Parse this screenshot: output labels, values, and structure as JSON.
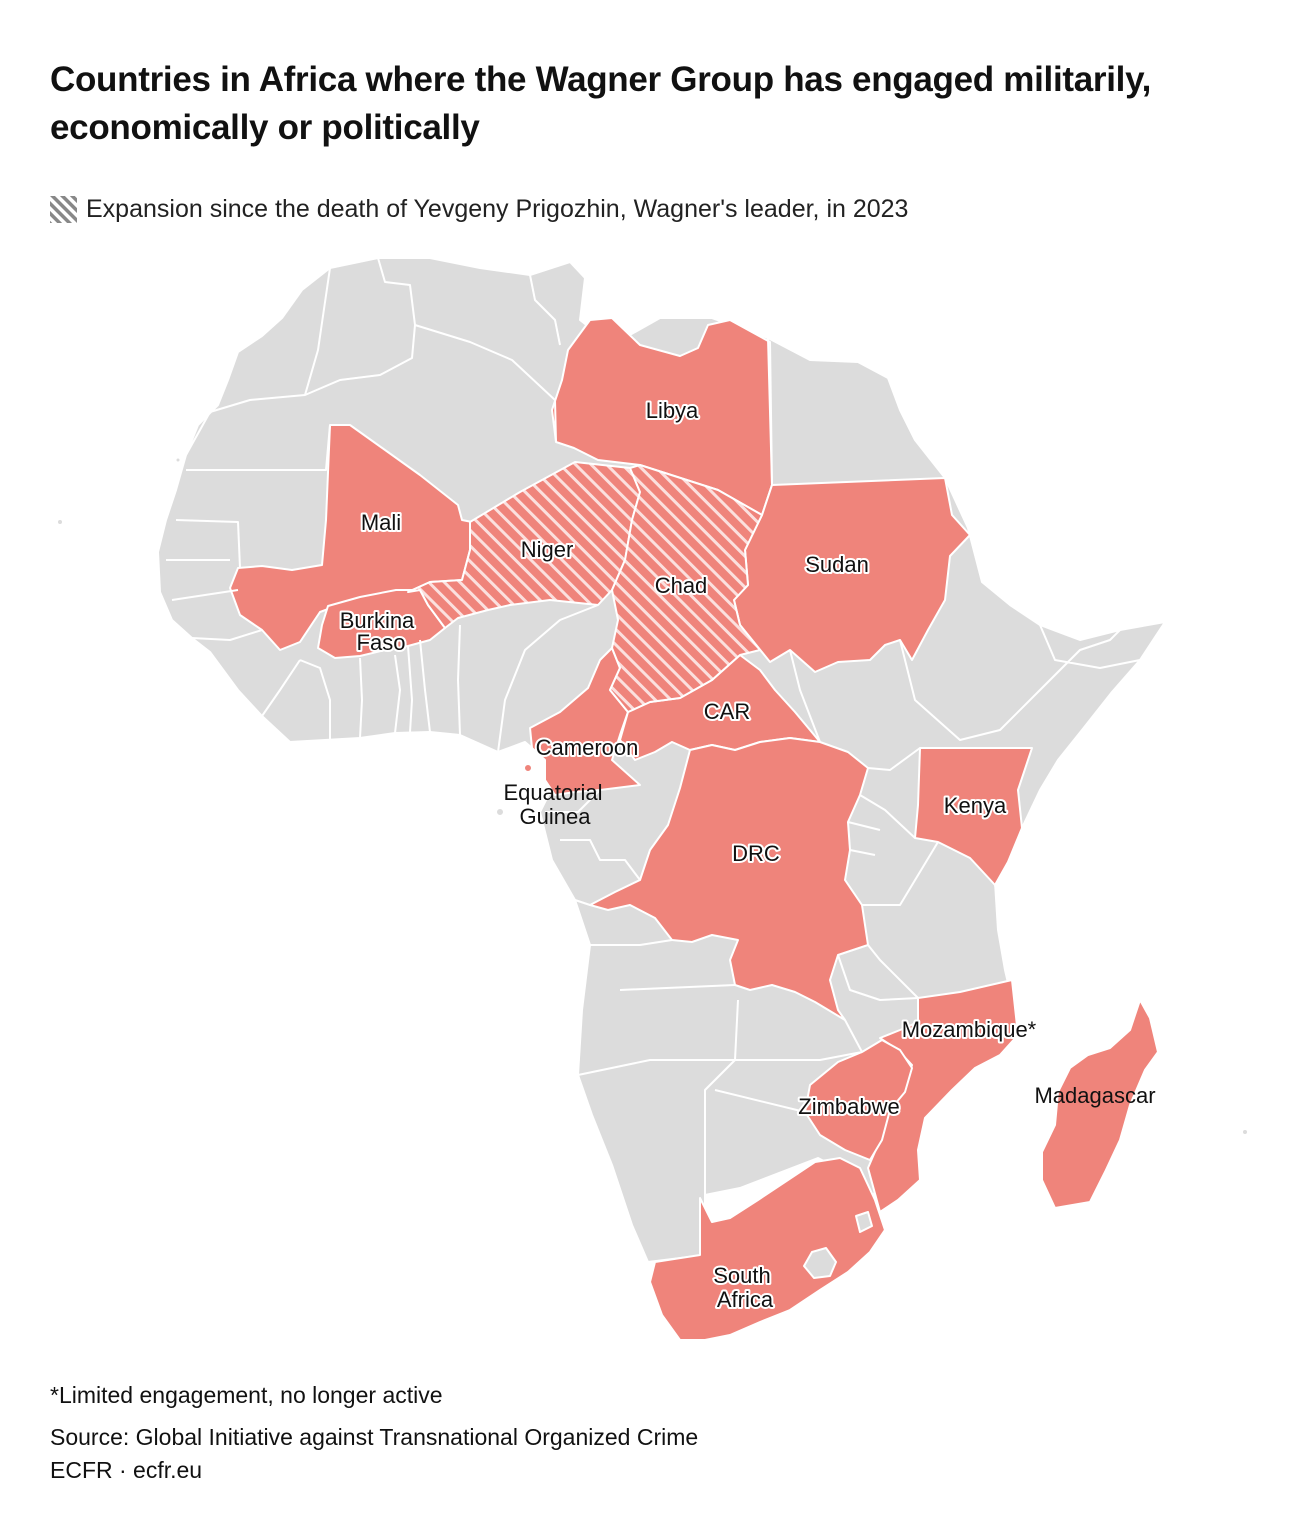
{
  "title": "Countries in Africa where the Wagner Group has engaged militarily, economically or politically",
  "legend": {
    "label": "Expansion since the death of Yevgeny Prigozhin, Wagner's leader, in 2023",
    "pattern": "diagonal-hatch"
  },
  "colors": {
    "engaged": "#ef847b",
    "other": "#dcdcdc",
    "hatch_line": "#ffffff",
    "legend_hatch": "#888888"
  },
  "countries": {
    "libya": "Libya",
    "mali": "Mali",
    "niger": "Niger",
    "chad": "Chad",
    "sudan": "Sudan",
    "burkina_line1": "Burkina",
    "burkina_line2": "Faso",
    "car": "CAR",
    "cameroon": "Cameroon",
    "eq_guinea_line1": "Equatorial",
    "eq_guinea_line2": "Guinea",
    "kenya": "Kenya",
    "drc": "DRC",
    "mozambique": "Mozambique*",
    "zimbabwe": "Zimbabwe",
    "madagascar": "Madagascar",
    "south_africa_line1": "South",
    "south_africa_line2": "Africa"
  },
  "footnote": "*Limited engagement, no longer active",
  "source": "Source: Global Initiative against Transnational Organized Crime",
  "credit": "ECFR · ecfr.eu"
}
